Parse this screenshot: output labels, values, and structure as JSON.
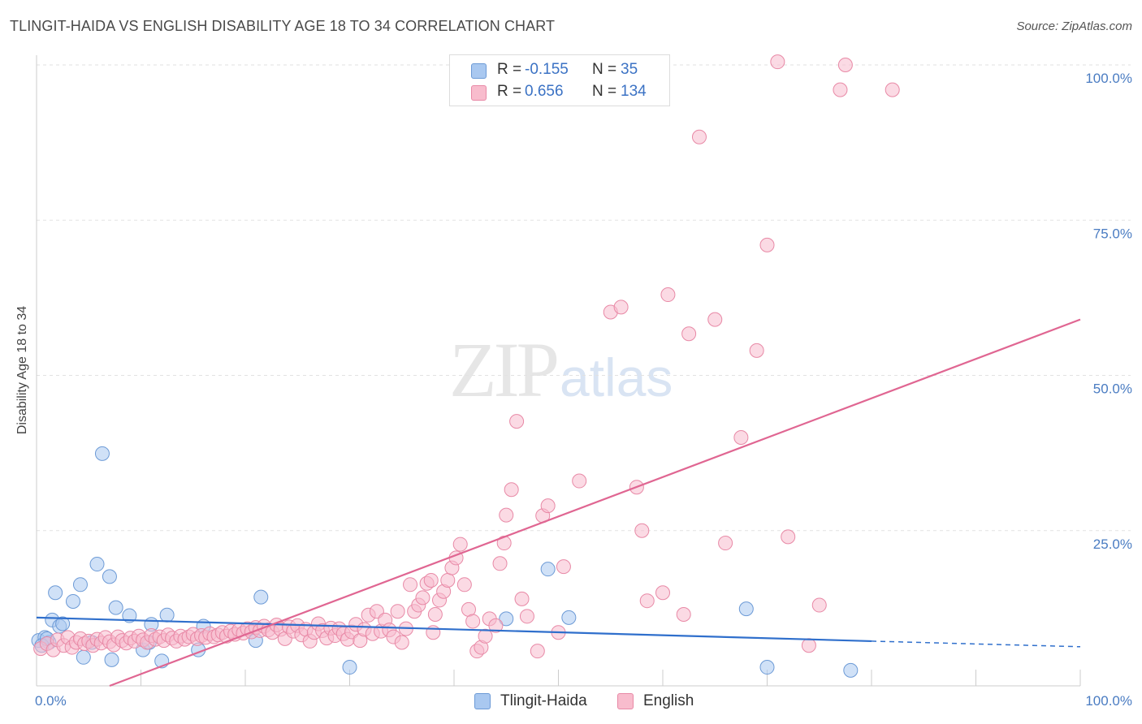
{
  "title": "TLINGIT-HAIDA VS ENGLISH DISABILITY AGE 18 TO 34 CORRELATION CHART",
  "source": "Source: ZipAtlas.com",
  "watermark": {
    "zip": "ZIP",
    "atlas": "atlas"
  },
  "legend": {
    "rows": [
      {
        "r_label": "R =",
        "r_value": "-0.155",
        "n_label": "N =",
        "n_value": "35",
        "color": "#a9c8f0",
        "border": "#6c9ad6"
      },
      {
        "r_label": "R =",
        "r_value": "0.656",
        "n_label": "N =",
        "n_value": "134",
        "color": "#f8bccd",
        "border": "#e889a6"
      }
    ]
  },
  "chart_data": {
    "type": "scatter",
    "title": "TLINGIT-HAIDA VS ENGLISH DISABILITY AGE 18 TO 34 CORRELATION CHART",
    "xlabel": "",
    "ylabel": "Disability Age 18 to 34",
    "xlim": [
      0,
      100
    ],
    "ylim": [
      0,
      100
    ],
    "x_tick_labels": [
      "0.0%",
      "100.0%"
    ],
    "y_tick_labels": [
      {
        "value": 25,
        "label": "25.0%"
      },
      {
        "value": 50,
        "label": "50.0%"
      },
      {
        "value": 75,
        "label": "75.0%"
      },
      {
        "value": 100,
        "label": "100.0%"
      }
    ],
    "grid": true,
    "legend_position": "top-center",
    "series": [
      {
        "name": "Tlingit-Haida",
        "color": "#a9c8f0",
        "edge": "#6c9ad6",
        "line_color": "#2f6fcc",
        "trend": {
          "x0": 0,
          "y0": 11.0,
          "x1": 80,
          "y1": 7.2,
          "dash_to_x": 100,
          "dash_to_y": 6.3
        },
        "points": [
          [
            0.2,
            7.3
          ],
          [
            0.8,
            7.8
          ],
          [
            1.2,
            7.0
          ],
          [
            1.5,
            10.6
          ],
          [
            1.8,
            15.0
          ],
          [
            2.2,
            9.6
          ],
          [
            2.5,
            10.0
          ],
          [
            3.5,
            13.6
          ],
          [
            4.2,
            16.3
          ],
          [
            4.5,
            4.6
          ],
          [
            5.3,
            7.0
          ],
          [
            5.8,
            19.6
          ],
          [
            6.3,
            37.4
          ],
          [
            7.0,
            17.6
          ],
          [
            7.2,
            4.2
          ],
          [
            7.6,
            12.6
          ],
          [
            8.9,
            11.3
          ],
          [
            10.2,
            5.8
          ],
          [
            10.8,
            7.0
          ],
          [
            11.0,
            9.9
          ],
          [
            12.0,
            4.0
          ],
          [
            12.5,
            11.4
          ],
          [
            15.5,
            5.8
          ],
          [
            16.0,
            9.6
          ],
          [
            21.0,
            7.3
          ],
          [
            21.5,
            14.3
          ],
          [
            30.0,
            3.0
          ],
          [
            45.0,
            10.8
          ],
          [
            49.0,
            18.8
          ],
          [
            51.0,
            11.0
          ],
          [
            68.0,
            12.4
          ],
          [
            70.0,
            3.0
          ],
          [
            78.0,
            2.5
          ],
          [
            0.5,
            6.5
          ],
          [
            1.0,
            7.6
          ]
        ]
      },
      {
        "name": "English",
        "color": "#f8bccd",
        "edge": "#e889a6",
        "line_color": "#e06692",
        "trend": {
          "x0": 7,
          "y0": 0.0,
          "x1": 100,
          "y1": 59.0
        },
        "points": [
          [
            0.4,
            6.0
          ],
          [
            1.0,
            6.8
          ],
          [
            1.6,
            5.8
          ],
          [
            2.0,
            7.4
          ],
          [
            2.6,
            6.5
          ],
          [
            3.0,
            7.8
          ],
          [
            3.4,
            6.2
          ],
          [
            3.8,
            7.0
          ],
          [
            4.2,
            7.6
          ],
          [
            4.6,
            6.8
          ],
          [
            5.0,
            7.2
          ],
          [
            5.4,
            6.5
          ],
          [
            5.8,
            7.5
          ],
          [
            6.2,
            6.9
          ],
          [
            6.6,
            7.8
          ],
          [
            7.0,
            7.1
          ],
          [
            7.4,
            6.6
          ],
          [
            7.8,
            7.9
          ],
          [
            8.2,
            7.3
          ],
          [
            8.6,
            6.9
          ],
          [
            9.0,
            7.7
          ],
          [
            9.4,
            7.2
          ],
          [
            9.8,
            8.0
          ],
          [
            10.2,
            7.4
          ],
          [
            10.6,
            7.0
          ],
          [
            11.0,
            8.1
          ],
          [
            11.4,
            7.5
          ],
          [
            11.8,
            7.9
          ],
          [
            12.2,
            7.3
          ],
          [
            12.6,
            8.2
          ],
          [
            13.0,
            7.7
          ],
          [
            13.4,
            7.2
          ],
          [
            13.8,
            8.0
          ],
          [
            14.2,
            7.5
          ],
          [
            14.6,
            7.9
          ],
          [
            15.0,
            8.3
          ],
          [
            15.4,
            7.6
          ],
          [
            15.8,
            8.1
          ],
          [
            16.2,
            7.8
          ],
          [
            16.6,
            8.4
          ],
          [
            17.0,
            7.9
          ],
          [
            17.4,
            8.2
          ],
          [
            17.8,
            8.6
          ],
          [
            18.2,
            8.0
          ],
          [
            18.6,
            8.8
          ],
          [
            19.0,
            8.3
          ],
          [
            19.4,
            9.0
          ],
          [
            19.8,
            8.5
          ],
          [
            20.2,
            9.2
          ],
          [
            20.6,
            8.7
          ],
          [
            21.0,
            9.4
          ],
          [
            21.4,
            8.9
          ],
          [
            21.8,
            9.6
          ],
          [
            22.2,
            9.0
          ],
          [
            22.6,
            8.6
          ],
          [
            23.0,
            9.8
          ],
          [
            23.4,
            9.1
          ],
          [
            23.8,
            7.6
          ],
          [
            24.2,
            9.5
          ],
          [
            24.6,
            8.8
          ],
          [
            25.0,
            9.7
          ],
          [
            25.4,
            8.2
          ],
          [
            25.8,
            9.1
          ],
          [
            26.2,
            7.2
          ],
          [
            26.6,
            8.6
          ],
          [
            27.0,
            10.0
          ],
          [
            27.4,
            8.9
          ],
          [
            27.8,
            7.7
          ],
          [
            28.2,
            9.3
          ],
          [
            28.6,
            8.1
          ],
          [
            29.0,
            9.2
          ],
          [
            29.4,
            8.4
          ],
          [
            29.8,
            7.5
          ],
          [
            30.2,
            8.7
          ],
          [
            30.6,
            9.9
          ],
          [
            31.0,
            7.3
          ],
          [
            31.4,
            9.1
          ],
          [
            31.8,
            11.4
          ],
          [
            32.2,
            8.4
          ],
          [
            32.6,
            12.0
          ],
          [
            33.0,
            8.8
          ],
          [
            33.4,
            10.6
          ],
          [
            33.8,
            9.0
          ],
          [
            34.2,
            7.9
          ],
          [
            34.6,
            12.0
          ],
          [
            35.0,
            7.0
          ],
          [
            35.4,
            9.2
          ],
          [
            35.8,
            16.3
          ],
          [
            36.2,
            12.0
          ],
          [
            36.6,
            13.0
          ],
          [
            37.0,
            14.2
          ],
          [
            37.4,
            16.5
          ],
          [
            37.8,
            17.0
          ],
          [
            38.2,
            11.5
          ],
          [
            38.6,
            13.8
          ],
          [
            39.0,
            15.2
          ],
          [
            39.4,
            17.0
          ],
          [
            39.8,
            19.0
          ],
          [
            40.2,
            20.6
          ],
          [
            40.6,
            22.8
          ],
          [
            41.0,
            16.3
          ],
          [
            41.4,
            12.3
          ],
          [
            41.8,
            10.4
          ],
          [
            42.2,
            5.6
          ],
          [
            42.6,
            6.2
          ],
          [
            43.0,
            8.0
          ],
          [
            43.4,
            10.8
          ],
          [
            44.0,
            9.7
          ],
          [
            44.4,
            19.7
          ],
          [
            44.8,
            23.0
          ],
          [
            45.0,
            27.5
          ],
          [
            45.5,
            31.6
          ],
          [
            46.0,
            42.6
          ],
          [
            46.5,
            14.0
          ],
          [
            47.0,
            11.2
          ],
          [
            48.0,
            5.6
          ],
          [
            48.5,
            27.4
          ],
          [
            49.0,
            29.0
          ],
          [
            50.0,
            8.6
          ],
          [
            50.5,
            19.2
          ],
          [
            52.0,
            33.0
          ],
          [
            55.0,
            60.2
          ],
          [
            56.0,
            61.0
          ],
          [
            57.5,
            32.0
          ],
          [
            58.0,
            25.0
          ],
          [
            60.0,
            15.0
          ],
          [
            60.5,
            63.0
          ],
          [
            62.5,
            56.7
          ],
          [
            63.5,
            88.4
          ],
          [
            65.0,
            59.0
          ],
          [
            66.0,
            23.0
          ],
          [
            67.5,
            40.0
          ],
          [
            69.0,
            54.0
          ],
          [
            70.0,
            71.0
          ],
          [
            71.0,
            100.5
          ],
          [
            72.0,
            24.0
          ],
          [
            75.0,
            13.0
          ],
          [
            77.0,
            96.0
          ],
          [
            77.5,
            100.0
          ],
          [
            82.0,
            96.0
          ],
          [
            58.5,
            13.7
          ],
          [
            62.0,
            11.5
          ],
          [
            74.0,
            6.5
          ],
          [
            38.0,
            8.6
          ]
        ]
      }
    ]
  },
  "bottom_legend": [
    {
      "label": "Tlingit-Haida"
    },
    {
      "label": "English"
    }
  ]
}
